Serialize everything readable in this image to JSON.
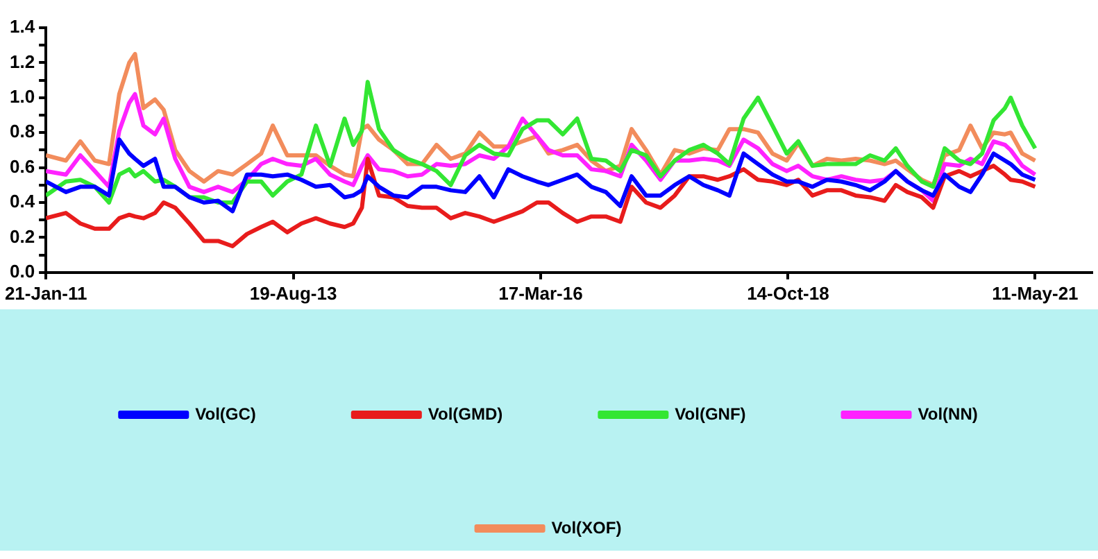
{
  "chart_data": {
    "type": "line",
    "legend": "bottom",
    "xlim": [
      "2011-01-21",
      "2021-12-15"
    ],
    "ylim": [
      0,
      1.4
    ],
    "xticks": [
      {
        "value": "2011-01-21",
        "label": "21-Jan-11"
      },
      {
        "value": "2013-08-19",
        "label": "19-Aug-13"
      },
      {
        "value": "2016-03-17",
        "label": "17-Mar-16"
      },
      {
        "value": "2018-10-14",
        "label": "14-Oct-18"
      },
      {
        "value": "2021-05-11",
        "label": "11-May-21"
      }
    ],
    "yticks": [
      {
        "value": 0,
        "label": "0.0"
      },
      {
        "value": 0.1,
        "label": null
      },
      0.2,
      {
        "value": 0.3,
        "label": null
      },
      0.4,
      {
        "value": 0.5,
        "label": null
      },
      0.6,
      {
        "value": 0.7,
        "label": null
      },
      0.8,
      {
        "value": 0.9,
        "label": null
      },
      {
        "value": 1,
        "label": "1.0"
      },
      {
        "value": 1.1,
        "label": null
      },
      1.2,
      {
        "value": 1.3,
        "label": null
      },
      1.4
    ],
    "x": [
      "2011-01-21",
      "2011-04-07",
      "2011-06-01",
      "2011-07-26",
      "2011-09-18",
      "2011-10-27",
      "2011-12-04",
      "2011-12-26",
      "2012-01-27",
      "2012-03-11",
      "2012-04-13",
      "2012-05-27",
      "2012-07-20",
      "2012-09-13",
      "2012-11-06",
      "2012-12-31",
      "2013-02-24",
      "2013-04-19",
      "2013-06-02",
      "2013-07-27",
      "2013-09-19",
      "2013-11-13",
      "2014-01-06",
      "2014-03-02",
      "2014-04-04",
      "2014-05-07",
      "2014-05-29",
      "2014-07-11",
      "2014-09-04",
      "2014-10-28",
      "2014-12-22",
      "2015-02-15",
      "2015-04-10",
      "2015-06-04",
      "2015-07-28",
      "2015-09-21",
      "2015-11-15",
      "2016-01-08",
      "2016-03-03",
      "2016-04-16",
      "2016-06-09",
      "2016-08-03",
      "2016-09-26",
      "2016-11-20",
      "2017-01-14",
      "2017-02-26",
      "2017-04-22",
      "2017-06-16",
      "2017-08-09",
      "2017-10-03",
      "2017-11-26",
      "2018-01-20",
      "2018-03-05",
      "2018-04-28",
      "2018-06-22",
      "2018-08-16",
      "2018-10-09",
      "2018-11-22",
      "2019-01-15",
      "2019-03-11",
      "2019-05-05",
      "2019-06-28",
      "2019-08-22",
      "2019-10-16",
      "2019-11-28",
      "2020-01-11",
      "2020-03-06",
      "2020-04-18",
      "2020-06-01",
      "2020-07-26",
      "2020-09-07",
      "2020-10-21",
      "2020-12-04",
      "2021-01-16",
      "2021-02-07",
      "2021-03-23",
      "2021-05-11"
    ],
    "series": [
      {
        "name": "Vol(GC)",
        "color": "#0000ff",
        "values": [
          0.52,
          0.46,
          0.49,
          0.49,
          0.44,
          0.76,
          0.68,
          0.65,
          0.61,
          0.65,
          0.49,
          0.49,
          0.43,
          0.4,
          0.41,
          0.35,
          0.56,
          0.56,
          0.55,
          0.56,
          0.53,
          0.49,
          0.5,
          0.43,
          0.44,
          0.47,
          0.55,
          0.49,
          0.44,
          0.43,
          0.49,
          0.49,
          0.47,
          0.46,
          0.55,
          0.43,
          0.59,
          0.55,
          0.52,
          0.5,
          0.53,
          0.56,
          0.49,
          0.46,
          0.38,
          0.55,
          0.44,
          0.44,
          0.5,
          0.55,
          0.5,
          0.47,
          0.44,
          0.68,
          0.62,
          0.56,
          0.52,
          0.52,
          0.49,
          0.53,
          0.52,
          0.5,
          0.47,
          0.52,
          0.58,
          0.52,
          0.47,
          0.44,
          0.56,
          0.49,
          0.46,
          0.56,
          0.68,
          0.64,
          0.62,
          0.56,
          0.53
        ]
      },
      {
        "name": "Vol(GMD)",
        "color": "#e81c1c",
        "values": [
          0.31,
          0.34,
          0.28,
          0.25,
          0.25,
          0.31,
          0.33,
          0.32,
          0.31,
          0.34,
          0.4,
          0.37,
          0.28,
          0.18,
          0.18,
          0.15,
          0.22,
          0.26,
          0.29,
          0.23,
          0.28,
          0.31,
          0.28,
          0.26,
          0.28,
          0.37,
          0.65,
          0.44,
          0.43,
          0.38,
          0.37,
          0.37,
          0.31,
          0.34,
          0.32,
          0.29,
          0.32,
          0.35,
          0.4,
          0.4,
          0.34,
          0.29,
          0.32,
          0.32,
          0.29,
          0.49,
          0.4,
          0.37,
          0.44,
          0.55,
          0.55,
          0.53,
          0.55,
          0.59,
          0.53,
          0.52,
          0.5,
          0.53,
          0.44,
          0.47,
          0.47,
          0.44,
          0.43,
          0.41,
          0.5,
          0.46,
          0.43,
          0.37,
          0.55,
          0.58,
          0.55,
          0.58,
          0.61,
          0.56,
          0.53,
          0.52,
          0.49
        ]
      },
      {
        "name": "Vol(GNF)",
        "color": "#33e633",
        "values": [
          0.44,
          0.52,
          0.53,
          0.49,
          0.4,
          0.56,
          0.59,
          0.55,
          0.58,
          0.52,
          0.53,
          0.49,
          0.43,
          0.43,
          0.4,
          0.4,
          0.52,
          0.52,
          0.44,
          0.52,
          0.56,
          0.84,
          0.61,
          0.88,
          0.73,
          0.81,
          1.09,
          0.82,
          0.7,
          0.65,
          0.62,
          0.58,
          0.5,
          0.67,
          0.73,
          0.68,
          0.67,
          0.82,
          0.87,
          0.87,
          0.79,
          0.88,
          0.65,
          0.64,
          0.58,
          0.7,
          0.67,
          0.55,
          0.64,
          0.7,
          0.73,
          0.68,
          0.62,
          0.88,
          1.0,
          0.84,
          0.68,
          0.75,
          0.61,
          0.62,
          0.62,
          0.62,
          0.67,
          0.64,
          0.71,
          0.61,
          0.52,
          0.49,
          0.71,
          0.64,
          0.62,
          0.68,
          0.87,
          0.94,
          1.0,
          0.84,
          0.71
        ]
      },
      {
        "name": "Vol(NN)",
        "color": "#ff22ff",
        "values": [
          0.58,
          0.56,
          0.67,
          0.58,
          0.49,
          0.81,
          0.97,
          1.02,
          0.84,
          0.79,
          0.88,
          0.65,
          0.49,
          0.46,
          0.49,
          0.46,
          0.53,
          0.62,
          0.65,
          0.62,
          0.61,
          0.65,
          0.56,
          0.52,
          0.5,
          0.61,
          0.67,
          0.59,
          0.58,
          0.55,
          0.56,
          0.62,
          0.61,
          0.62,
          0.67,
          0.65,
          0.72,
          0.88,
          0.78,
          0.7,
          0.67,
          0.67,
          0.59,
          0.58,
          0.55,
          0.73,
          0.64,
          0.53,
          0.64,
          0.64,
          0.65,
          0.64,
          0.61,
          0.76,
          0.71,
          0.62,
          0.58,
          0.61,
          0.55,
          0.53,
          0.55,
          0.53,
          0.52,
          0.53,
          0.58,
          0.52,
          0.47,
          0.41,
          0.62,
          0.61,
          0.65,
          0.62,
          0.75,
          0.73,
          0.7,
          0.61,
          0.56
        ]
      },
      {
        "name": "Vol(XOF)",
        "color": "#f28c5c",
        "values": [
          0.67,
          0.64,
          0.75,
          0.64,
          0.62,
          1.02,
          1.2,
          1.25,
          0.94,
          0.99,
          0.93,
          0.7,
          0.58,
          0.52,
          0.58,
          0.56,
          0.62,
          0.68,
          0.84,
          0.67,
          0.67,
          0.67,
          0.61,
          0.56,
          0.55,
          0.82,
          0.84,
          0.76,
          0.7,
          0.62,
          0.62,
          0.73,
          0.65,
          0.68,
          0.8,
          0.72,
          0.72,
          0.75,
          0.78,
          0.68,
          0.7,
          0.73,
          0.64,
          0.58,
          0.61,
          0.82,
          0.7,
          0.56,
          0.7,
          0.68,
          0.71,
          0.7,
          0.82,
          0.82,
          0.8,
          0.68,
          0.64,
          0.74,
          0.61,
          0.65,
          0.64,
          0.65,
          0.64,
          0.62,
          0.64,
          0.59,
          0.53,
          0.5,
          0.67,
          0.7,
          0.84,
          0.71,
          0.8,
          0.79,
          0.8,
          0.68,
          0.64
        ]
      }
    ]
  }
}
